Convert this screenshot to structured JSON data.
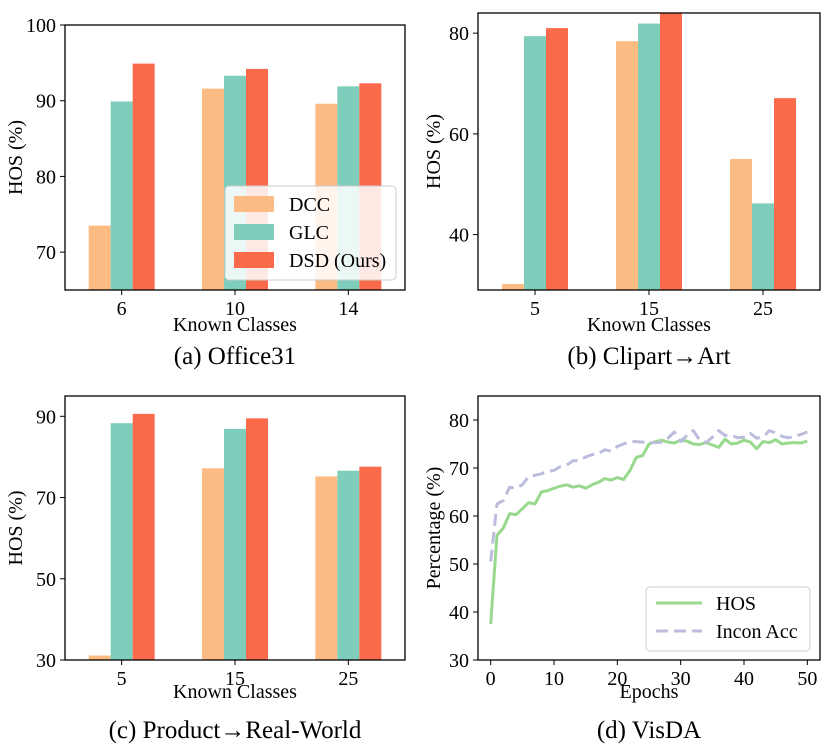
{
  "colors": {
    "DCC": "#FDBB84",
    "GLC": "#7FCDBB",
    "DSD": "#FC6A4C",
    "HOS": "#98D98E",
    "InconAcc": "#BCBDDC"
  },
  "chart_data": [
    {
      "type": "bar",
      "caption": "(a) Office31",
      "xlabel": "Known Classes",
      "ylabel": "HOS (%)",
      "ylim": [
        65,
        100
      ],
      "yticks": [
        70,
        80,
        90,
        100
      ],
      "categories": [
        "6",
        "10",
        "14"
      ],
      "legend": {
        "location": "lower-right",
        "entries": [
          "DCC",
          "GLC",
          "DSD (Ours)"
        ]
      },
      "series": [
        {
          "name": "DCC",
          "values": [
            73.5,
            91.6,
            89.6
          ]
        },
        {
          "name": "GLC",
          "values": [
            89.9,
            93.3,
            91.9
          ]
        },
        {
          "name": "DSD (Ours)",
          "values": [
            94.9,
            94.2,
            92.3
          ]
        }
      ]
    },
    {
      "type": "bar",
      "caption": "(b) Clipart→Art",
      "xlabel": "Known Classes",
      "ylabel": "HOS (%)",
      "ylim": [
        29,
        84
      ],
      "yticks": [
        40,
        60,
        80
      ],
      "categories": [
        "5",
        "15",
        "25"
      ],
      "series": [
        {
          "name": "DCC",
          "values": [
            30.2,
            78.4,
            55.0
          ]
        },
        {
          "name": "GLC",
          "values": [
            79.4,
            81.9,
            46.2
          ]
        },
        {
          "name": "DSD (Ours)",
          "values": [
            81.0,
            84.0,
            67.1
          ]
        }
      ]
    },
    {
      "type": "bar",
      "caption": "(c) Product→Real-World",
      "xlabel": "Known Classes",
      "ylabel": "HOS (%)",
      "ylim": [
        30,
        95
      ],
      "yticks": [
        30,
        50,
        70,
        90
      ],
      "categories": [
        "5",
        "15",
        "25"
      ],
      "series": [
        {
          "name": "DCC",
          "values": [
            31.1,
            77.2,
            75.2
          ]
        },
        {
          "name": "GLC",
          "values": [
            88.3,
            86.9,
            76.6
          ]
        },
        {
          "name": "DSD (Ours)",
          "values": [
            90.6,
            89.5,
            77.6
          ]
        }
      ]
    },
    {
      "type": "line",
      "caption": "(d) VisDA",
      "xlabel": "Epochs",
      "ylabel": "Percentage (%)",
      "xlim": [
        -2,
        52
      ],
      "ylim": [
        30,
        85
      ],
      "xticks": [
        0,
        10,
        20,
        30,
        40,
        50
      ],
      "yticks": [
        30,
        40,
        50,
        60,
        70,
        80
      ],
      "legend": {
        "location": "lower-right",
        "entries": [
          "HOS",
          "Incon Acc"
        ]
      },
      "series": [
        {
          "name": "HOS",
          "x": [
            0,
            1,
            2,
            3,
            4,
            5,
            6,
            7,
            8,
            9,
            10,
            11,
            12,
            13,
            14,
            15,
            16,
            17,
            18,
            19,
            20,
            21,
            22,
            23,
            24,
            25,
            26,
            27,
            28,
            29,
            30,
            31,
            32,
            33,
            34,
            35,
            36,
            37,
            38,
            39,
            40,
            41,
            42,
            43,
            44,
            45,
            46,
            47,
            48,
            49,
            50
          ],
          "values": [
            37.5,
            56.0,
            57.5,
            60.5,
            60.3,
            61.5,
            62.8,
            62.5,
            65.0,
            65.3,
            65.8,
            66.2,
            66.5,
            66.0,
            66.3,
            65.8,
            66.5,
            67.0,
            67.8,
            67.5,
            68.0,
            67.6,
            69.5,
            72.2,
            72.6,
            75.0,
            75.5,
            75.8,
            75.4,
            75.2,
            75.8,
            75.6,
            75.0,
            74.9,
            75.3,
            74.8,
            74.3,
            76.0,
            75.0,
            75.2,
            75.8,
            75.4,
            74.0,
            75.5,
            75.3,
            75.9,
            75.0,
            75.2,
            75.3,
            75.2,
            75.6
          ]
        },
        {
          "name": "Incon Acc",
          "x": [
            0,
            1,
            2,
            3,
            4,
            5,
            6,
            7,
            8,
            9,
            10,
            11,
            12,
            13,
            14,
            15,
            16,
            17,
            18,
            19,
            20,
            21,
            22,
            23,
            24,
            25,
            26,
            27,
            28,
            29,
            30,
            31,
            32,
            33,
            34,
            35,
            36,
            37,
            38,
            39,
            40,
            41,
            42,
            43,
            44,
            45,
            46,
            47,
            48,
            49,
            50
          ],
          "values": [
            50.5,
            62.5,
            63.2,
            66.0,
            65.8,
            66.5,
            68.2,
            68.5,
            68.8,
            69.3,
            69.5,
            70.3,
            70.6,
            71.5,
            71.6,
            72.3,
            72.8,
            73.0,
            73.8,
            73.5,
            74.5,
            75.0,
            75.5,
            75.5,
            75.4,
            75.3,
            75.3,
            75.4,
            76.2,
            77.5,
            75.5,
            76.8,
            77.8,
            75.8,
            75.3,
            76.4,
            77.8,
            76.8,
            76.8,
            76.3,
            76.4,
            77.2,
            76.2,
            76.4,
            77.8,
            77.3,
            76.6,
            76.3,
            76.6,
            77.0,
            77.5
          ]
        }
      ]
    }
  ]
}
